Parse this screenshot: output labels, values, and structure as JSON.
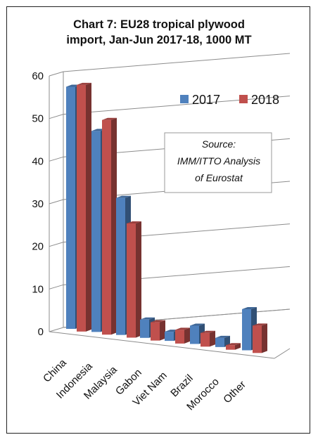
{
  "chart_data": {
    "type": "bar",
    "title_lines": [
      "Chart 7: EU28 tropical plywood",
      "import, Jan-Jun 2017-18, 1000 MT"
    ],
    "categories": [
      "China",
      "Indonesia",
      "Malaysia",
      "Gabon",
      "Viet Nam",
      "Brazil",
      "Morocco",
      "Other"
    ],
    "series": [
      {
        "name": "2017",
        "values": [
          53,
          44,
          30,
          4,
          2,
          4,
          2,
          9
        ],
        "color": "#4f81bd"
      },
      {
        "name": "2018",
        "values": [
          54,
          47,
          25,
          4,
          3,
          3,
          1,
          6
        ],
        "color": "#c0504d"
      }
    ],
    "ylim": [
      0,
      60
    ],
    "yticks": [
      0,
      10,
      20,
      30,
      40,
      50,
      60
    ],
    "grid": true,
    "legend_position": "top-right",
    "annotation_lines": [
      "Source:",
      "IMM/ITTO Analysis",
      "of Eurostat"
    ]
  }
}
